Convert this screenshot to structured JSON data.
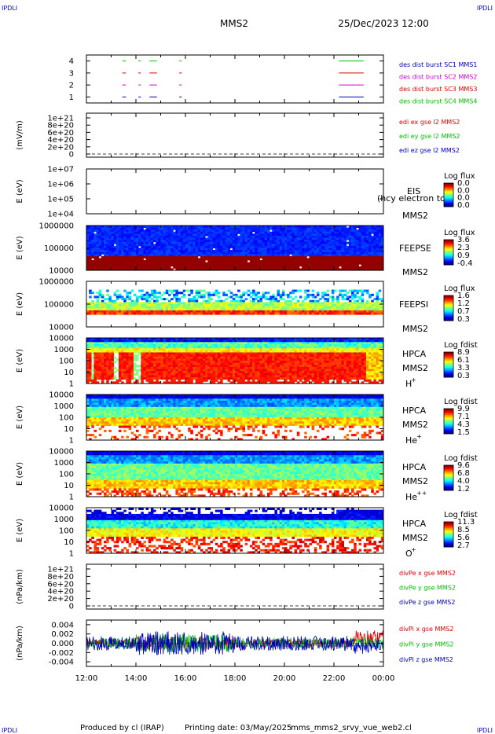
{
  "header": {
    "corner_left_top": "IPDLI",
    "corner_right_top": "IPDLI",
    "mission": "MMS2",
    "date": "25/Dec/2023 12:00",
    "corner_left_bottom": "IPDLI",
    "corner_right_bottom": "IPDLI"
  },
  "footer": {
    "credit": "Produced by cl (IRAP)",
    "printing_date": "Printing date: 03/May/2025",
    "script": "mms_mms2_srvy_vue_web2.cl"
  },
  "colors": {
    "red": "#e00000",
    "green": "#00c000",
    "blue": "#0000c0",
    "magenta": "#d000d0"
  },
  "chart_data": [
    {
      "type": "line",
      "name": "burst-intervals",
      "yticks": [
        "1",
        "2",
        "3",
        "4"
      ],
      "ylim": [
        0.5,
        4.5
      ],
      "legend": [
        {
          "text": "des dist burst SC1 MMS1",
          "color": "#0000c0"
        },
        {
          "text": "des dist burst SC2 MMS2",
          "color": "#d000d0"
        },
        {
          "text": "des dist burst SC3 MMS3",
          "color": "#e00000"
        },
        {
          "text": "des dist burst SC4 MMS4",
          "color": "#00c000"
        }
      ],
      "intervals_hours": [
        [
          13.45,
          13.6
        ],
        [
          14.1,
          14.2
        ],
        [
          14.55,
          14.85
        ],
        [
          15.75,
          15.85
        ],
        [
          22.2,
          23.2
        ]
      ]
    },
    {
      "type": "line",
      "name": "edi-electric-field",
      "ylabel": "(mV/m)",
      "yticks": [
        "1e+21",
        "8e+20",
        "6e+20",
        "4e+20",
        "2e+20",
        "0"
      ],
      "legend": [
        {
          "text": "edi ex gse l2 MMS2",
          "color": "#e00000"
        },
        {
          "text": "edi ey gse l2 MMS2",
          "color": "#00c000"
        },
        {
          "text": "edi ez gse l2 MMS2",
          "color": "#0000c0"
        }
      ]
    },
    {
      "type": "heatmap",
      "name": "eis",
      "ylabel": "E (eV)",
      "yticks": [
        "1e+07",
        "1e+06",
        "1e+05",
        "1e+04"
      ],
      "instrument": "EIS",
      "overlay_text": "(hcy electron to",
      "spacecraft": "MMS2",
      "colorbar_title": "Log flux",
      "colorbar_ticks": [
        "0.0",
        "0.0",
        "0.0",
        "0.0"
      ]
    },
    {
      "type": "heatmap",
      "name": "feeps-electrons",
      "ylabel": "E (eV)",
      "yticks": [
        "1000000",
        "100000",
        "10000"
      ],
      "instrument": "FEEPSE",
      "spacecraft": "MMS2",
      "colorbar_title": "Log flux",
      "colorbar_ticks": [
        "3.6",
        "2.3",
        "0.9",
        "-0.4"
      ]
    },
    {
      "type": "heatmap",
      "name": "feeps-ions",
      "ylabel": "E (eV)",
      "yticks": [
        "1000000",
        "100000",
        "10000"
      ],
      "instrument": "FEEPSI",
      "spacecraft": "MMS2",
      "colorbar_title": "Log flux",
      "colorbar_ticks": [
        "1.6",
        "1.2",
        "0.7",
        "0.3"
      ]
    },
    {
      "type": "heatmap",
      "name": "hpca-h",
      "ylabel": "E (eV)",
      "yticks": [
        "10000",
        "1000",
        "100",
        "10",
        "1"
      ],
      "instrument": "HPCA",
      "spacecraft": "MMS2",
      "species": "H",
      "species_charge": "+",
      "colorbar_title": "Log fdist",
      "colorbar_ticks": [
        "8.9",
        "6.1",
        "3.3",
        "0.3"
      ]
    },
    {
      "type": "heatmap",
      "name": "hpca-he",
      "ylabel": "E (eV)",
      "yticks": [
        "10000",
        "1000",
        "100",
        "10",
        "1"
      ],
      "instrument": "HPCA",
      "spacecraft": "MMS2",
      "species": "He",
      "species_charge": "+",
      "colorbar_title": "Log fdist",
      "colorbar_ticks": [
        "9.9",
        "7.1",
        "4.3",
        "1.5"
      ]
    },
    {
      "type": "heatmap",
      "name": "hpca-he2",
      "ylabel": "E (eV)",
      "yticks": [
        "10000",
        "1000",
        "100",
        "10",
        "1"
      ],
      "instrument": "HPCA",
      "spacecraft": "MMS2",
      "species": "He",
      "species_charge": "++",
      "colorbar_title": "Log fdist",
      "colorbar_ticks": [
        "9.6",
        "6.8",
        "4.0",
        "1.2"
      ]
    },
    {
      "type": "heatmap",
      "name": "hpca-o",
      "ylabel": "E (eV)",
      "yticks": [
        "10000",
        "1000",
        "100",
        "10",
        "1"
      ],
      "instrument": "HPCA",
      "spacecraft": "MMS2",
      "species": "O",
      "species_charge": "+",
      "colorbar_title": "Log fdist",
      "colorbar_ticks": [
        "11.3",
        "8.5",
        "5.6",
        "2.7"
      ]
    },
    {
      "type": "line",
      "name": "div-pe",
      "ylabel": "(nPa/km)",
      "yticks": [
        "1e+21",
        "8e+20",
        "6e+20",
        "4e+20",
        "2e+20",
        "0"
      ],
      "legend": [
        {
          "text": "divPe x gse MMS2",
          "color": "#e00000"
        },
        {
          "text": "divPe y gse MMS2",
          "color": "#00c000"
        },
        {
          "text": "divPe z gse MMS2",
          "color": "#0000c0"
        }
      ]
    },
    {
      "type": "line",
      "name": "div-pi",
      "ylabel": "(nPa/km)",
      "yticks": [
        "0.004",
        "0.002",
        "0.000",
        "-0.002",
        "-0.004"
      ],
      "ylim": [
        -0.005,
        0.005
      ],
      "legend": [
        {
          "text": "divPi x gse MMS2",
          "color": "#e00000"
        },
        {
          "text": "divPi y gse MMS2",
          "color": "#00c000"
        },
        {
          "text": "divPi z gse MMS2",
          "color": "#0000c0"
        }
      ]
    }
  ],
  "xaxis": {
    "ticks": [
      "12:00",
      "14:00",
      "16:00",
      "18:00",
      "20:00",
      "22:00",
      "00:00"
    ]
  }
}
